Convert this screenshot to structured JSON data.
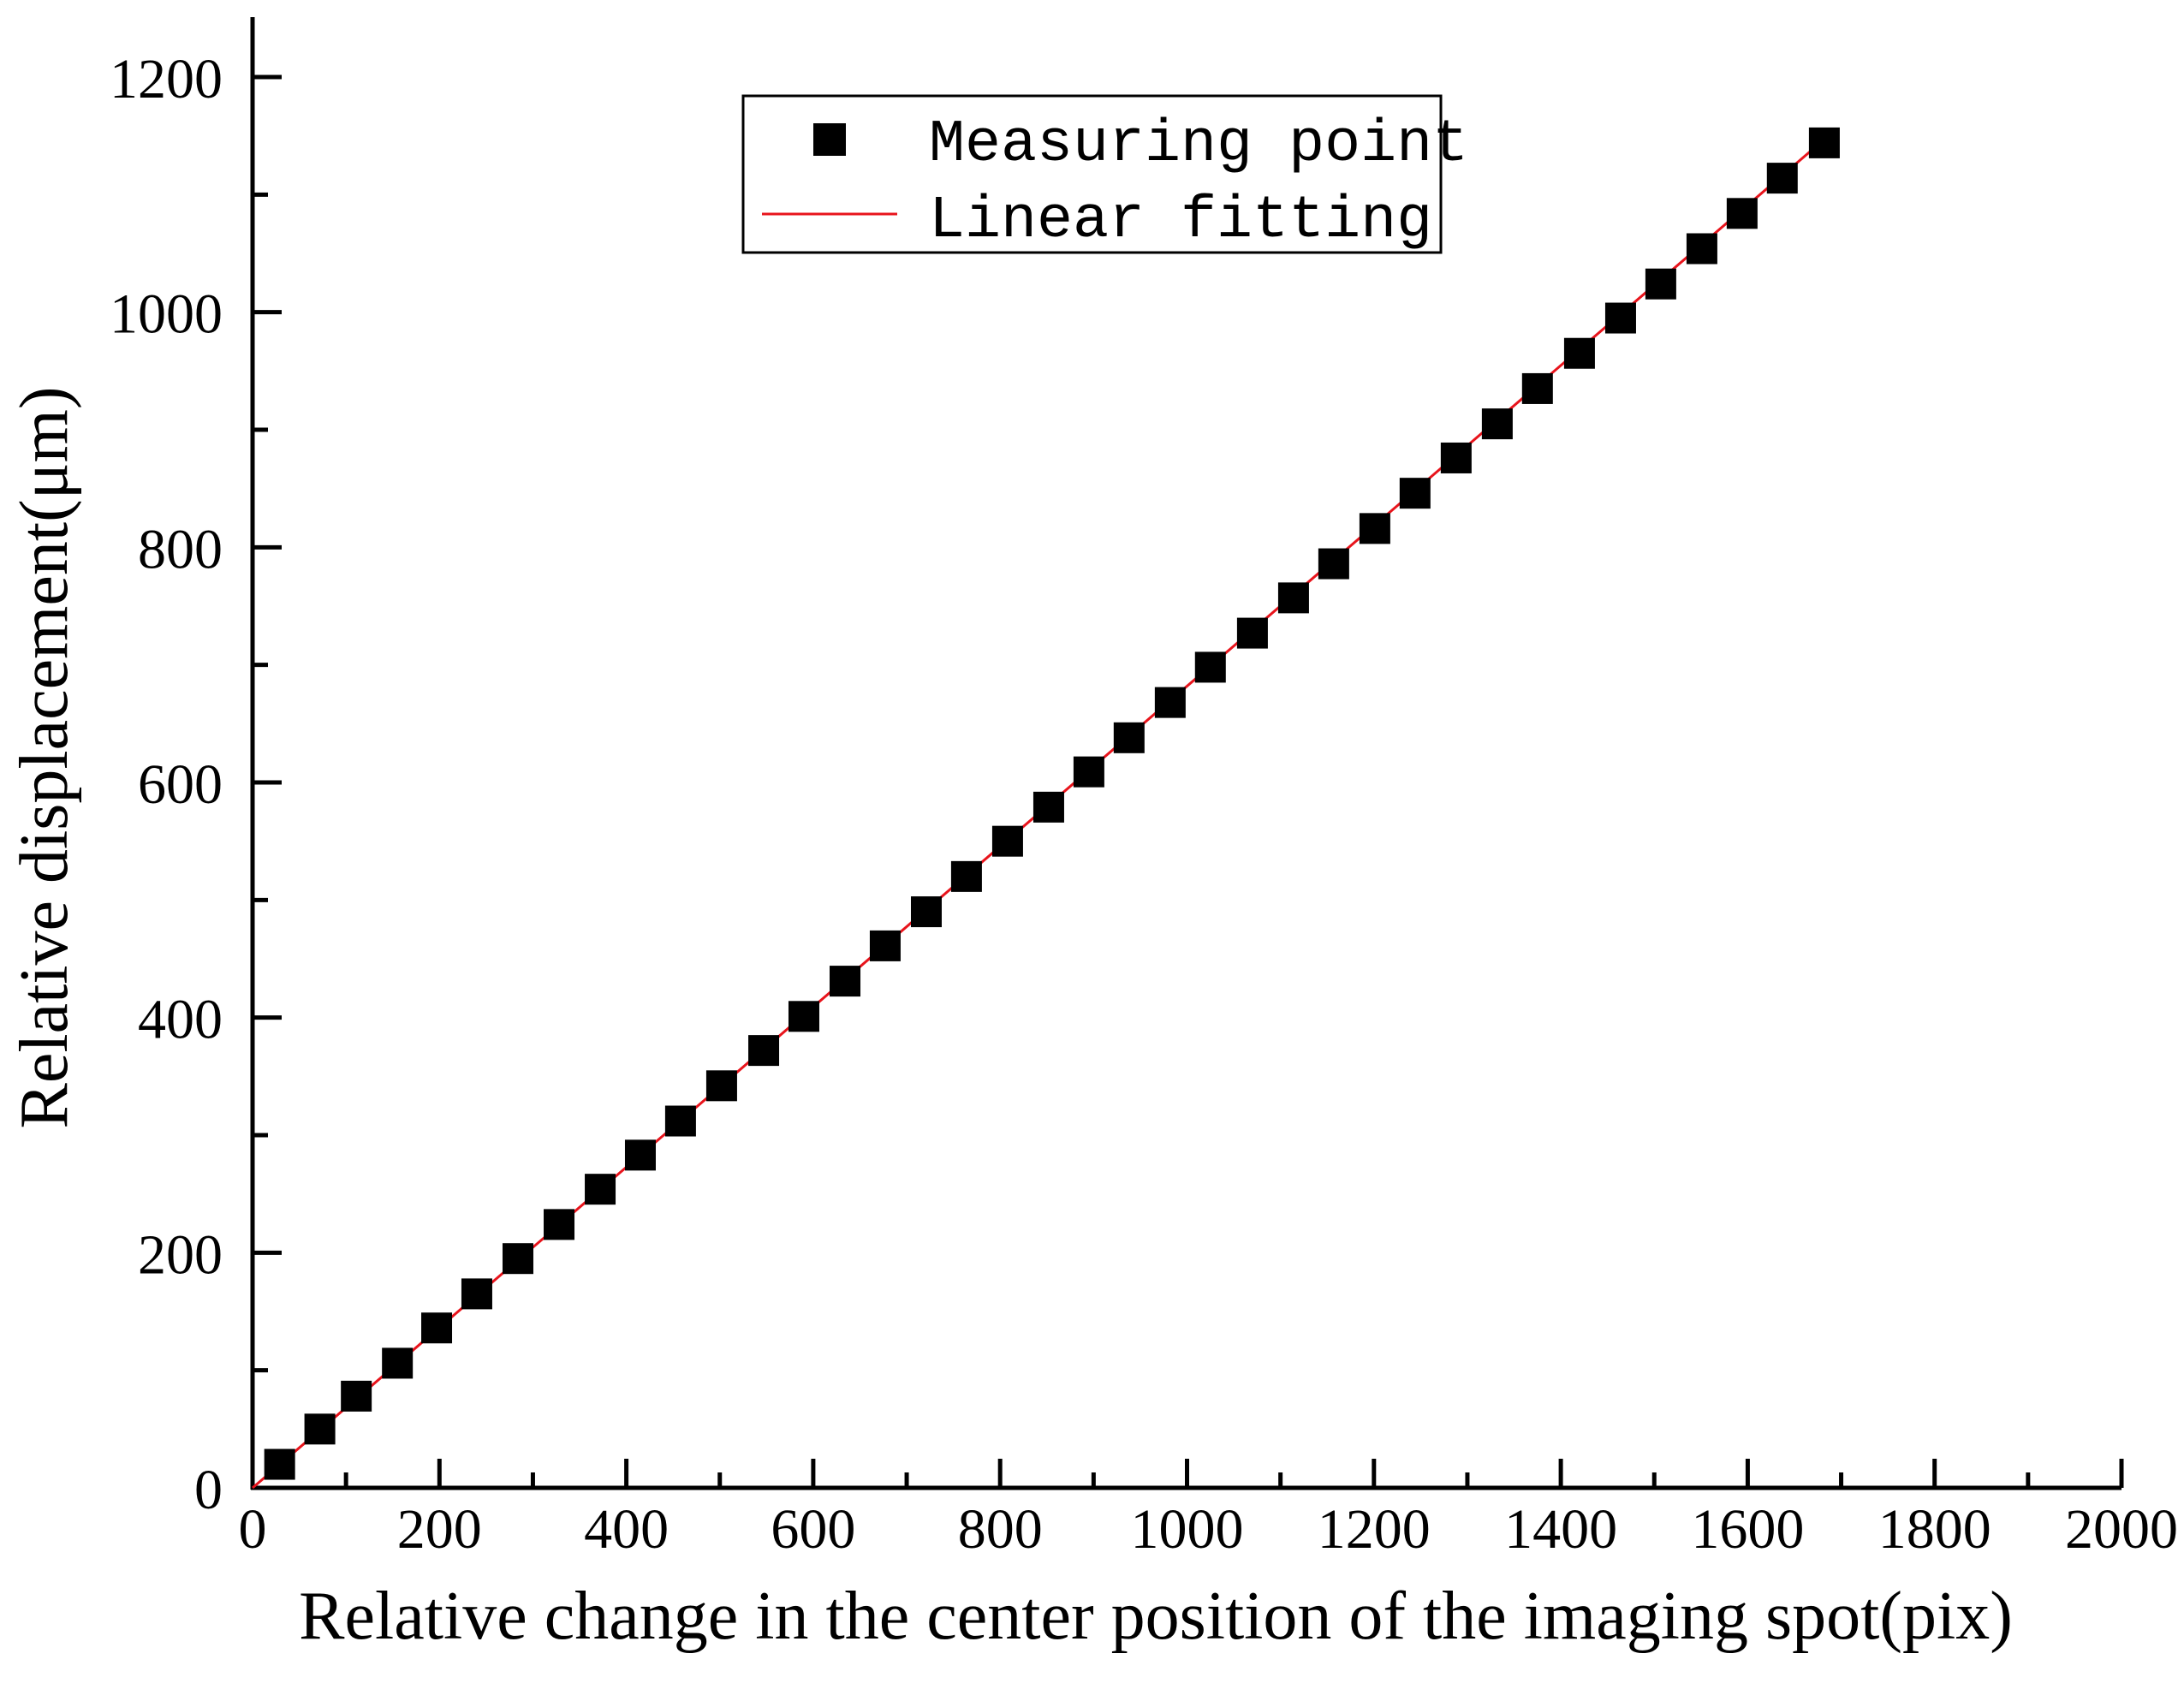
{
  "chart_data": {
    "type": "scatter",
    "xlabel": "Relative change in the center position of the imaging spot(pix)",
    "ylabel": "Relative displacement(μm)",
    "xlim": [
      0,
      2000
    ],
    "ylim": [
      0,
      1200
    ],
    "x_ticks": [
      "0",
      "200",
      "400",
      "600",
      "800",
      "1000",
      "1200",
      "1400",
      "1600",
      "1800",
      "2000"
    ],
    "y_ticks": [
      "0",
      "200",
      "400",
      "600",
      "800",
      "1000",
      "1200"
    ],
    "grid": false,
    "legend_position": "top-center",
    "series": [
      {
        "name": "Measuring point",
        "kind": "scatter",
        "marker": "square",
        "color": "#000000",
        "x": [
          29,
          72,
          111,
          155,
          197,
          240,
          284,
          328,
          372,
          415,
          458,
          502,
          547,
          590,
          634,
          677,
          721,
          764,
          808,
          852,
          895,
          938,
          982,
          1025,
          1070,
          1114,
          1157,
          1201,
          1244,
          1288,
          1332,
          1375,
          1420,
          1464,
          1507,
          1551,
          1594,
          1637,
          1682
        ],
        "y": [
          20,
          50,
          78,
          106,
          136,
          165,
          195,
          224,
          254,
          283,
          312,
          342,
          372,
          401,
          431,
          461,
          490,
          520,
          550,
          579,
          609,
          638,
          668,
          698,
          727,
          757,
          786,
          816,
          846,
          876,
          905,
          935,
          965,
          995,
          1024,
          1054,
          1084,
          1114,
          1144
        ]
      },
      {
        "name": "Linear fitting",
        "kind": "line",
        "color": "#e8141c",
        "x": [
          0,
          1682
        ],
        "y": [
          0,
          1147
        ]
      }
    ]
  }
}
